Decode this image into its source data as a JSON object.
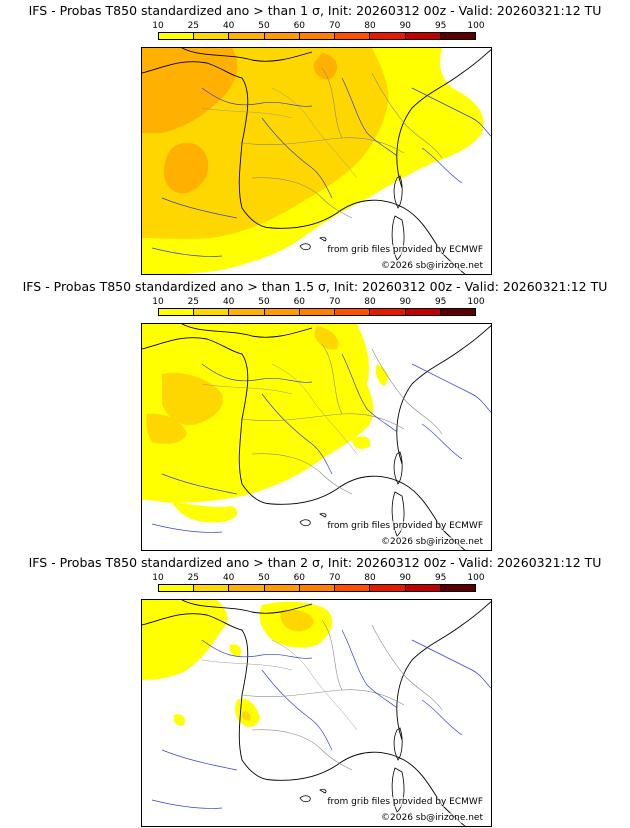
{
  "scale": {
    "ticks": [
      "10",
      "25",
      "40",
      "50",
      "60",
      "70",
      "80",
      "90",
      "95",
      "100"
    ],
    "colors": [
      "#ffff00",
      "#ffd700",
      "#ffb000",
      "#ff9a00",
      "#ff7f00",
      "#ff5000",
      "#e61a00",
      "#c00000",
      "#900000",
      "#5a0000"
    ]
  },
  "credits": {
    "grib": "from grib files provided by ECMWF",
    "copyright": "©2026 sb@irizone.net"
  },
  "panels": [
    {
      "title": "IFS - Probas T850  standardized ano > than 1 σ, Init: 20260312 00z - Valid: 20260321:12 TU",
      "threshold": "1 σ"
    },
    {
      "title": "IFS - Probas T850  standardized ano > than 1.5 σ, Init: 20260312 00z - Valid: 20260321:12 TU",
      "threshold": "1.5 σ"
    },
    {
      "title": "IFS - Probas T850  standardized ano > than 2 σ, Init: 20260312 00z - Valid: 20260321:12 TU",
      "threshold": "2 σ"
    }
  ]
}
